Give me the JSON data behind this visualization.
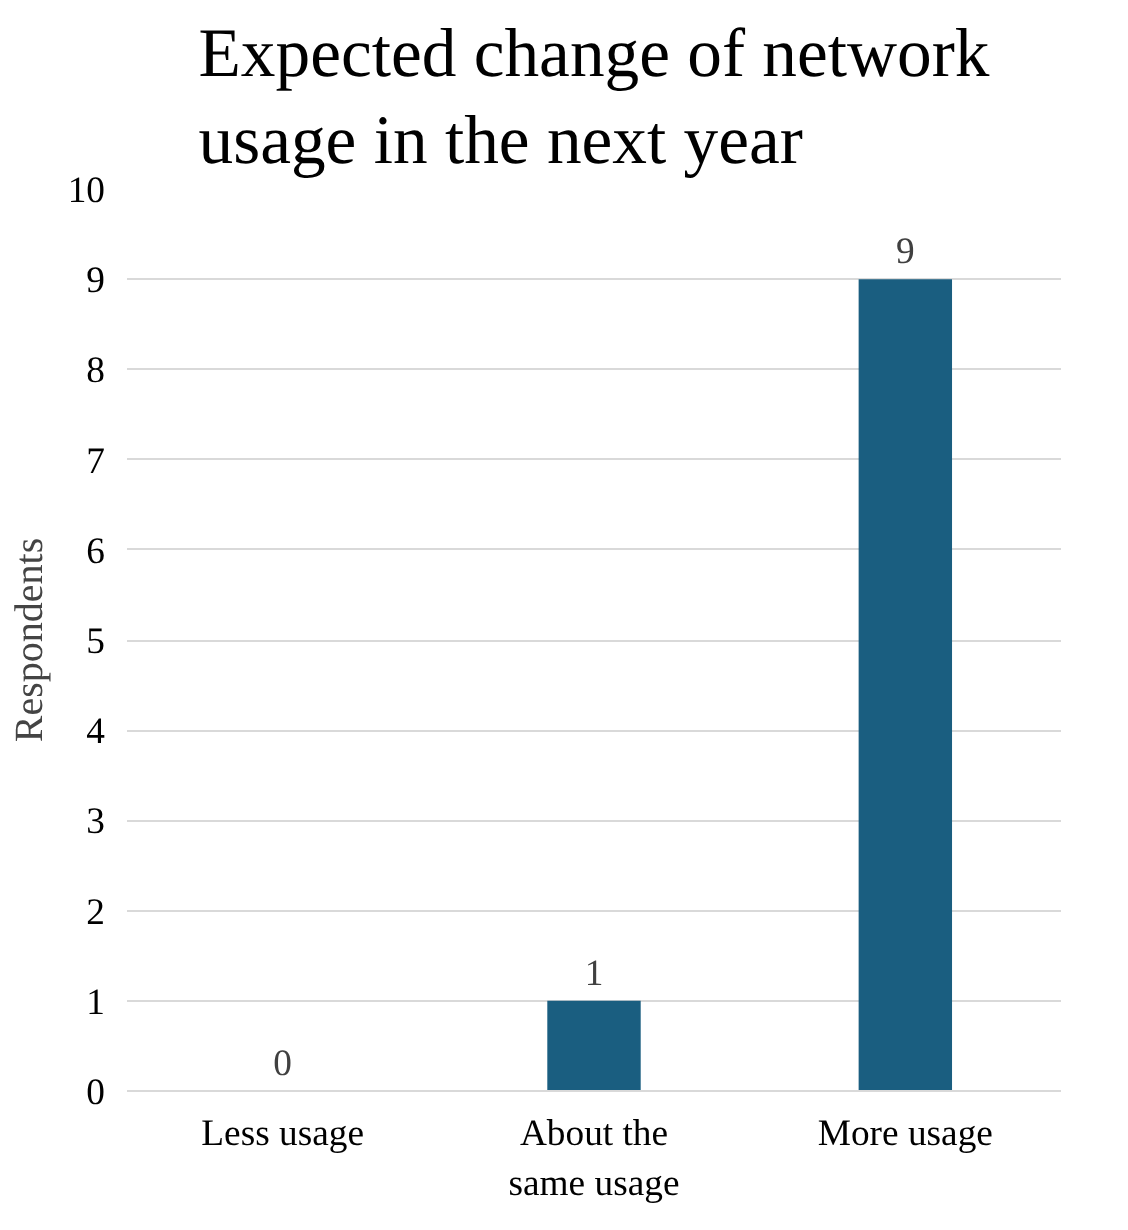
{
  "chart_data": {
    "type": "bar",
    "title": "Expected change of network usage in the next year",
    "ylabel": "Respondents",
    "categories": [
      "Less usage",
      "About the same usage",
      "More usage"
    ],
    "values": [
      0,
      1,
      9
    ],
    "color": "#1a5e80",
    "ylim": [
      0,
      10
    ],
    "yticks": [
      0,
      1,
      2,
      3,
      4,
      5,
      6,
      7,
      8,
      9,
      10
    ],
    "grid": "y",
    "data_labels": true
  }
}
